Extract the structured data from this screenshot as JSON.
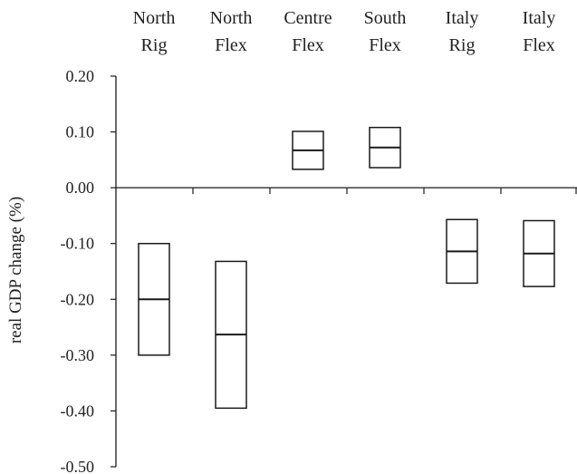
{
  "chart_data": {
    "type": "box",
    "categories": [
      [
        "North",
        "Rig"
      ],
      [
        "North",
        "Flex"
      ],
      [
        "Centre",
        "Flex"
      ],
      [
        "South",
        "Flex"
      ],
      [
        "Italy",
        "Rig"
      ],
      [
        "Italy",
        "Flex"
      ]
    ],
    "boxes": [
      {
        "low": -0.3,
        "median": -0.2,
        "high": -0.1
      },
      {
        "low": -0.395,
        "median": -0.263,
        "high": -0.132
      },
      {
        "low": 0.033,
        "median": 0.067,
        "high": 0.101
      },
      {
        "low": 0.036,
        "median": 0.072,
        "high": 0.108
      },
      {
        "low": -0.171,
        "median": -0.114,
        "high": -0.057
      },
      {
        "low": -0.177,
        "median": -0.118,
        "high": -0.059
      }
    ],
    "ylabel": "real GDP change (%)",
    "ylim": [
      -0.5,
      0.2
    ],
    "yticks": [
      "0.20",
      "0.10",
      "0.00",
      "-0.10",
      "-0.20",
      "-0.30",
      "-0.40",
      "-0.50"
    ],
    "grid": false,
    "colors": {
      "line": "#1a1a1a",
      "text": "#222222"
    }
  }
}
